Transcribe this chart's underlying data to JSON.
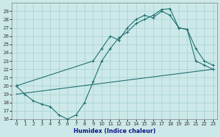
{
  "xlabel": "Humidex (Indice chaleur)",
  "bg_color": "#cce8e8",
  "grid_color": "#aad4d4",
  "line_color": "#1a6b6b",
  "xlim": [
    -0.5,
    23.5
  ],
  "ylim": [
    16,
    30
  ],
  "xticks": [
    0,
    1,
    2,
    3,
    4,
    5,
    6,
    7,
    8,
    9,
    10,
    11,
    12,
    13,
    14,
    15,
    16,
    17,
    18,
    19,
    20,
    21,
    22,
    23
  ],
  "yticks": [
    16,
    17,
    18,
    19,
    20,
    21,
    22,
    23,
    24,
    25,
    26,
    27,
    28,
    29
  ],
  "curve1_x": [
    0,
    1,
    2,
    3,
    4,
    5,
    6,
    7,
    8,
    9,
    10,
    11,
    12,
    13,
    14,
    15,
    16,
    17,
    18,
    19,
    20,
    21,
    22,
    23
  ],
  "curve1_y": [
    20,
    19,
    18.2,
    17.8,
    17.5,
    16.5,
    16,
    16.5,
    18,
    20.5,
    23,
    24.5,
    25.8,
    26.5,
    27.5,
    28,
    28.5,
    29.2,
    29.3,
    27,
    26.8,
    23,
    22.5,
    22
  ],
  "curve2_x": [
    0,
    9,
    10,
    11,
    12,
    13,
    14,
    15,
    16,
    17,
    18,
    19,
    20,
    21,
    22,
    23
  ],
  "curve2_y": [
    20,
    23,
    24.5,
    26,
    25.5,
    27,
    28,
    28.5,
    28.2,
    29,
    28.5,
    27,
    26.8,
    24.5,
    23,
    22.5
  ],
  "line3_x": [
    0,
    23
  ],
  "line3_y": [
    19,
    22
  ],
  "marker": "+",
  "markersize": 3.5,
  "lw": 0.8
}
